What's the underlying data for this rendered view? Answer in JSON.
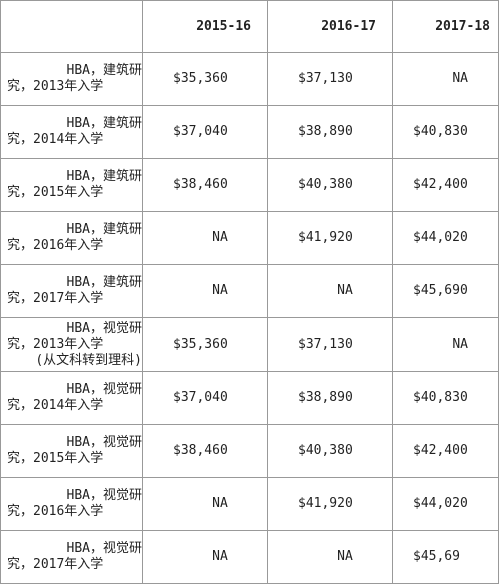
{
  "table": {
    "header": [
      "",
      "2015-16",
      "2016-17",
      "2017-18"
    ],
    "rows": [
      {
        "program_line1": "HBA，建筑研",
        "program_line2": "究，2013年入学",
        "program_line3": "",
        "y2015": "$35,360",
        "y2016": "$37,130",
        "y2017": "NA"
      },
      {
        "program_line1": "HBA，建筑研",
        "program_line2": "究，2014年入学",
        "program_line3": "",
        "y2015": "$37,040",
        "y2016": "$38,890",
        "y2017": "$40,830"
      },
      {
        "program_line1": "HBA，建筑研",
        "program_line2": "究，2015年入学",
        "program_line3": "",
        "y2015": "$38,460",
        "y2016": "$40,380",
        "y2017": "$42,400"
      },
      {
        "program_line1": "HBA，建筑研",
        "program_line2": "究，2016年入学",
        "program_line3": "",
        "y2015": "NA",
        "y2016": "$41,920",
        "y2017": "$44,020"
      },
      {
        "program_line1": "HBA，建筑研",
        "program_line2": "究，2017年入学",
        "program_line3": "",
        "y2015": "NA",
        "y2016": "NA",
        "y2017": "$45,690"
      },
      {
        "program_line1": "HBA，视觉研",
        "program_line2": "究，2013年入学",
        "program_line3": "(从文科转到理科)",
        "y2015": "$35,360",
        "y2016": "$37,130",
        "y2017": "NA"
      },
      {
        "program_line1": "HBA，视觉研",
        "program_line2": "究，2014年入学",
        "program_line3": "",
        "y2015": "$37,040",
        "y2016": "$38,890",
        "y2017": "$40,830"
      },
      {
        "program_line1": "HBA，视觉研",
        "program_line2": "究，2015年入学",
        "program_line3": "",
        "y2015": "$38,460",
        "y2016": "$40,380",
        "y2017": "$42,400"
      },
      {
        "program_line1": "HBA，视觉研",
        "program_line2": "究，2016年入学",
        "program_line3": "",
        "y2015": "NA",
        "y2016": "$41,920",
        "y2017": "$44,020"
      },
      {
        "program_line1": "HBA，视觉研",
        "program_line2": "究，2017年入学",
        "program_line3": "",
        "y2015": "NA",
        "y2016": "NA",
        "y2017": "$45,69"
      }
    ]
  }
}
